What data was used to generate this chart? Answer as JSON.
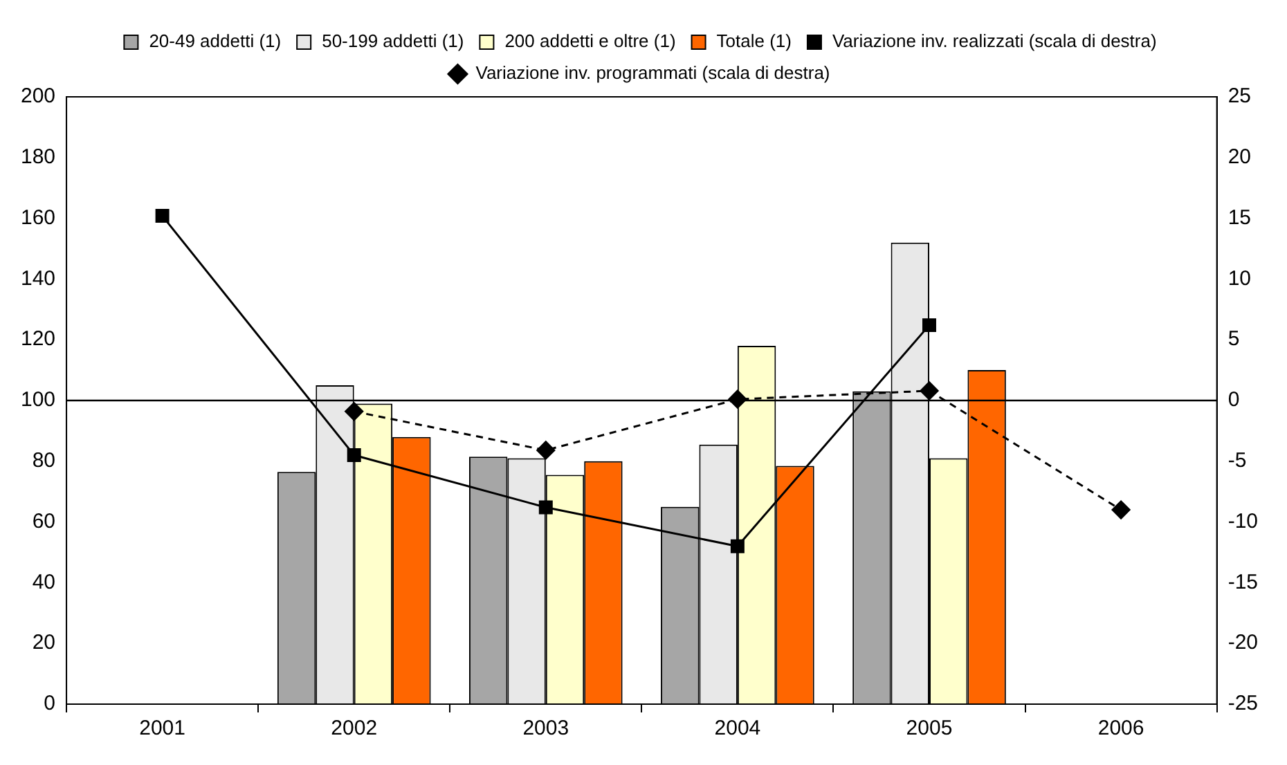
{
  "chart_data": {
    "type": "bar",
    "categories": [
      "2001",
      "2002",
      "2003",
      "2004",
      "2005",
      "2006"
    ],
    "series": [
      {
        "name": "20-49 addetti (1)",
        "color": "#a6a6a6",
        "values": [
          null,
          76.5,
          81.5,
          65,
          103,
          null
        ]
      },
      {
        "name": "50-199 addetti (1)",
        "color": "#e8e8e8",
        "values": [
          null,
          105,
          81,
          85.5,
          152,
          null
        ]
      },
      {
        "name": "200 addetti e oltre (1)",
        "color": "#ffffcc",
        "values": [
          null,
          99,
          75.5,
          118,
          81,
          null
        ]
      },
      {
        "name": "Totale (1)",
        "color": "#ff6600",
        "values": [
          null,
          88,
          80,
          78.5,
          110,
          null
        ]
      },
      {
        "name": "Variazione inv. realizzati (scala di destra)",
        "type": "line",
        "axis": "y2",
        "color": "#000000",
        "marker": "square",
        "line_style": "solid",
        "values": [
          15.2,
          -4.5,
          -8.8,
          -12,
          6.2,
          null
        ]
      },
      {
        "name": "Variazione inv. programmati (scala di destra)",
        "type": "line",
        "axis": "y2",
        "color": "#000000",
        "marker": "diamond",
        "line_style": "dashed",
        "values": [
          null,
          -0.9,
          -4.1,
          0.1,
          0.8,
          -9
        ]
      }
    ],
    "ylim": [
      0,
      200
    ],
    "yticks": [
      0,
      20,
      40,
      60,
      80,
      100,
      120,
      140,
      160,
      180,
      200
    ],
    "y2lim": [
      -25,
      25
    ],
    "y2ticks": [
      -25,
      -20,
      -15,
      -10,
      -5,
      0,
      5,
      10,
      15,
      20,
      25
    ],
    "ref_lines": [
      {
        "axis": "y2",
        "value": 0,
        "color": "#000000"
      }
    ],
    "legend": "top",
    "grid": false
  }
}
